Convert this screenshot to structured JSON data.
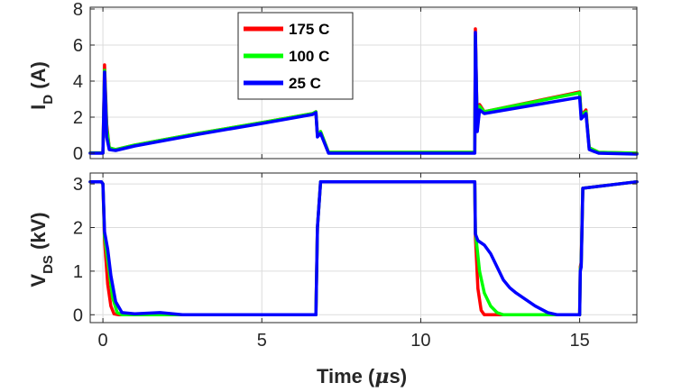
{
  "chart_data": [
    {
      "type": "line",
      "panel": "top",
      "ylabel": {
        "main": "I",
        "sub": "D",
        "unit": " (A)"
      },
      "xlim": [
        -0.4,
        16.8
      ],
      "ylim": [
        -0.3,
        8.1
      ],
      "xticks": [
        0,
        5,
        10,
        15
      ],
      "yticks": [
        0,
        2,
        4,
        6,
        8
      ],
      "grid": true,
      "legend": {
        "position": "top-left",
        "entries": [
          "175 C",
          "100 C",
          "25 C"
        ]
      },
      "series": [
        {
          "name": "175 C",
          "color": "#ff0000",
          "points": [
            [
              -0.4,
              0.02
            ],
            [
              0.0,
              0.02
            ],
            [
              0.05,
              4.9
            ],
            [
              0.12,
              1.6
            ],
            [
              0.2,
              0.3
            ],
            [
              0.4,
              0.2
            ],
            [
              1.0,
              0.45
            ],
            [
              3.0,
              1.1
            ],
            [
              5.0,
              1.7
            ],
            [
              6.6,
              2.2
            ],
            [
              6.7,
              2.3
            ],
            [
              6.75,
              1.0
            ],
            [
              6.85,
              1.2
            ],
            [
              7.1,
              0.05
            ],
            [
              11.7,
              0.05
            ],
            [
              11.72,
              6.9
            ],
            [
              11.78,
              1.3
            ],
            [
              11.85,
              2.7
            ],
            [
              12.0,
              2.3
            ],
            [
              15.0,
              3.4
            ],
            [
              15.05,
              2.1
            ],
            [
              15.2,
              2.4
            ],
            [
              15.3,
              0.3
            ],
            [
              15.6,
              0.05
            ],
            [
              16.8,
              0.0
            ]
          ]
        },
        {
          "name": "100 C",
          "color": "#00ff00",
          "points": [
            [
              -0.4,
              0.02
            ],
            [
              0.0,
              0.02
            ],
            [
              0.05,
              4.6
            ],
            [
              0.12,
              1.4
            ],
            [
              0.2,
              0.3
            ],
            [
              0.4,
              0.2
            ],
            [
              1.0,
              0.45
            ],
            [
              3.0,
              1.1
            ],
            [
              5.0,
              1.7
            ],
            [
              6.6,
              2.2
            ],
            [
              6.7,
              2.3
            ],
            [
              6.75,
              1.0
            ],
            [
              6.85,
              1.2
            ],
            [
              7.1,
              0.05
            ],
            [
              11.7,
              0.05
            ],
            [
              11.72,
              6.5
            ],
            [
              11.78,
              1.4
            ],
            [
              11.85,
              2.6
            ],
            [
              12.0,
              2.3
            ],
            [
              15.0,
              3.35
            ],
            [
              15.05,
              2.1
            ],
            [
              15.2,
              2.3
            ],
            [
              15.3,
              0.3
            ],
            [
              15.6,
              0.05
            ],
            [
              16.8,
              0.0
            ]
          ]
        },
        {
          "name": "25 C",
          "color": "#0000ff",
          "points": [
            [
              -0.4,
              0.0
            ],
            [
              0.0,
              0.0
            ],
            [
              0.05,
              4.5
            ],
            [
              0.12,
              0.9
            ],
            [
              0.2,
              0.2
            ],
            [
              0.4,
              0.15
            ],
            [
              1.0,
              0.4
            ],
            [
              3.0,
              1.05
            ],
            [
              5.0,
              1.65
            ],
            [
              6.6,
              2.15
            ],
            [
              6.7,
              2.25
            ],
            [
              6.75,
              0.9
            ],
            [
              6.85,
              1.1
            ],
            [
              7.1,
              0.0
            ],
            [
              11.7,
              0.0
            ],
            [
              11.72,
              6.7
            ],
            [
              11.78,
              1.2
            ],
            [
              11.85,
              2.4
            ],
            [
              12.0,
              2.2
            ],
            [
              15.0,
              3.1
            ],
            [
              15.05,
              1.9
            ],
            [
              15.2,
              2.2
            ],
            [
              15.3,
              0.2
            ],
            [
              15.6,
              0.0
            ],
            [
              16.8,
              -0.05
            ]
          ]
        }
      ]
    },
    {
      "type": "line",
      "panel": "bottom",
      "ylabel": {
        "main": "V",
        "sub": "DS",
        "unit": " (kV)"
      },
      "xlabel": {
        "pre": "Time (",
        "sym": "μ",
        "post": "s)"
      },
      "xlim": [
        -0.4,
        16.8
      ],
      "ylim": [
        -0.18,
        3.25
      ],
      "xticks": [
        0,
        5,
        10,
        15
      ],
      "yticks": [
        0,
        1,
        2,
        3
      ],
      "grid": true,
      "series": [
        {
          "name": "175 C",
          "color": "#ff0000",
          "points": [
            [
              -0.4,
              3.05
            ],
            [
              -0.05,
              3.05
            ],
            [
              0.0,
              3.0
            ],
            [
              0.05,
              1.7
            ],
            [
              0.15,
              0.7
            ],
            [
              0.25,
              0.2
            ],
            [
              0.35,
              0.02
            ],
            [
              0.5,
              0.0
            ],
            [
              6.7,
              0.0
            ],
            [
              6.75,
              2.0
            ],
            [
              6.85,
              3.05
            ],
            [
              11.7,
              3.05
            ],
            [
              11.72,
              1.8
            ],
            [
              11.8,
              0.6
            ],
            [
              11.9,
              0.1
            ],
            [
              12.0,
              0.0
            ],
            [
              15.0,
              0.0
            ],
            [
              15.02,
              1.1
            ],
            [
              15.05,
              1.2
            ],
            [
              15.1,
              2.9
            ],
            [
              16.8,
              3.05
            ]
          ]
        },
        {
          "name": "100 C",
          "color": "#00ff00",
          "points": [
            [
              -0.4,
              3.05
            ],
            [
              -0.05,
              3.05
            ],
            [
              0.0,
              3.0
            ],
            [
              0.05,
              1.8
            ],
            [
              0.2,
              1.0
            ],
            [
              0.3,
              0.4
            ],
            [
              0.45,
              0.05
            ],
            [
              0.6,
              0.0
            ],
            [
              6.7,
              0.0
            ],
            [
              6.75,
              2.0
            ],
            [
              6.85,
              3.05
            ],
            [
              11.7,
              3.05
            ],
            [
              11.72,
              1.9
            ],
            [
              11.85,
              1.0
            ],
            [
              12.0,
              0.5
            ],
            [
              12.2,
              0.2
            ],
            [
              12.4,
              0.05
            ],
            [
              12.6,
              0.0
            ],
            [
              15.0,
              0.0
            ],
            [
              15.02,
              1.05
            ],
            [
              15.05,
              1.15
            ],
            [
              15.1,
              2.9
            ],
            [
              16.8,
              3.05
            ]
          ]
        },
        {
          "name": "25 C",
          "color": "#0000ff",
          "points": [
            [
              -0.4,
              3.05
            ],
            [
              -0.05,
              3.05
            ],
            [
              0.0,
              3.0
            ],
            [
              0.05,
              1.9
            ],
            [
              0.15,
              1.5
            ],
            [
              0.25,
              0.9
            ],
            [
              0.4,
              0.3
            ],
            [
              0.6,
              0.05
            ],
            [
              1.0,
              0.02
            ],
            [
              1.8,
              0.05
            ],
            [
              2.5,
              0.0
            ],
            [
              6.7,
              0.0
            ],
            [
              6.75,
              2.0
            ],
            [
              6.85,
              3.05
            ],
            [
              11.7,
              3.05
            ],
            [
              11.72,
              1.85
            ],
            [
              11.8,
              1.7
            ],
            [
              12.0,
              1.6
            ],
            [
              12.2,
              1.4
            ],
            [
              12.4,
              1.1
            ],
            [
              12.6,
              0.8
            ],
            [
              12.8,
              0.62
            ],
            [
              13.0,
              0.5
            ],
            [
              13.3,
              0.35
            ],
            [
              13.6,
              0.2
            ],
            [
              14.0,
              0.05
            ],
            [
              14.3,
              0.0
            ],
            [
              15.0,
              0.0
            ],
            [
              15.02,
              1.0
            ],
            [
              15.05,
              1.1
            ],
            [
              15.1,
              2.9
            ],
            [
              16.8,
              3.05
            ]
          ]
        }
      ]
    }
  ]
}
